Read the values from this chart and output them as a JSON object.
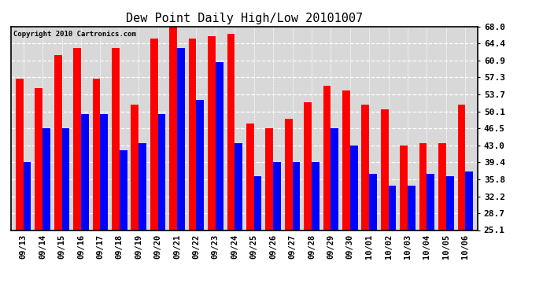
{
  "title": "Dew Point Daily High/Low 20101007",
  "copyright": "Copyright 2010 Cartronics.com",
  "dates": [
    "09/13",
    "09/14",
    "09/15",
    "09/16",
    "09/17",
    "09/18",
    "09/19",
    "09/20",
    "09/21",
    "09/22",
    "09/23",
    "09/24",
    "09/25",
    "09/26",
    "09/27",
    "09/28",
    "09/29",
    "09/30",
    "10/01",
    "10/02",
    "10/03",
    "10/04",
    "10/05",
    "10/06"
  ],
  "highs": [
    57.0,
    55.0,
    62.0,
    63.5,
    57.0,
    63.5,
    51.5,
    65.5,
    68.0,
    65.5,
    66.0,
    66.5,
    47.5,
    46.5,
    48.5,
    52.0,
    55.5,
    54.5,
    51.5,
    50.5,
    43.0,
    43.5,
    43.5,
    51.5
  ],
  "lows": [
    39.4,
    46.5,
    46.5,
    49.5,
    49.5,
    42.0,
    43.5,
    49.5,
    63.5,
    52.5,
    60.5,
    43.5,
    36.5,
    39.5,
    39.5,
    39.5,
    46.5,
    43.0,
    37.0,
    34.5,
    34.5,
    37.0,
    36.5,
    37.5
  ],
  "high_color": "#ff0000",
  "low_color": "#0000ff",
  "bg_color": "#ffffff",
  "plot_bg_color": "#d8d8d8",
  "grid_color": "#ffffff",
  "yticks": [
    25.1,
    28.7,
    32.2,
    35.8,
    39.4,
    43.0,
    46.5,
    50.1,
    53.7,
    57.3,
    60.9,
    64.4,
    68.0
  ],
  "ymin": 25.1,
  "ymax": 68.0,
  "bar_width": 0.4
}
